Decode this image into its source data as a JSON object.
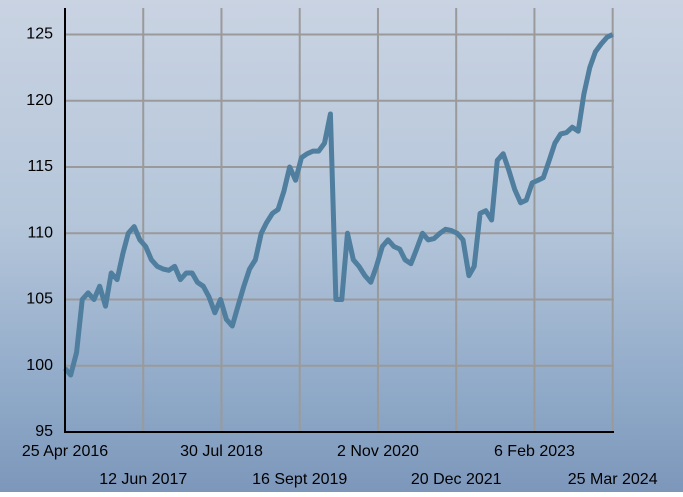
{
  "chart_data": {
    "type": "line",
    "color": "#4f7e9e",
    "grid": true,
    "x": [
      "2016-04-25",
      "2016-05-25",
      "2016-06-25",
      "2016-07-25",
      "2016-08-25",
      "2016-09-25",
      "2016-10-25",
      "2016-11-25",
      "2016-12-25",
      "2017-01-25",
      "2017-02-25",
      "2017-03-25",
      "2017-04-25",
      "2017-05-25",
      "2017-06-25",
      "2017-07-25",
      "2017-08-25",
      "2017-09-25",
      "2017-10-25",
      "2017-11-25",
      "2017-12-25",
      "2018-01-25",
      "2018-02-25",
      "2018-03-25",
      "2018-04-25",
      "2018-05-25",
      "2018-06-25",
      "2018-07-25",
      "2018-08-25",
      "2018-09-25",
      "2018-10-25",
      "2018-11-25",
      "2018-12-25",
      "2019-01-25",
      "2019-02-25",
      "2019-03-25",
      "2019-04-25",
      "2019-05-25",
      "2019-06-25",
      "2019-07-25",
      "2019-08-25",
      "2019-09-25",
      "2019-10-25",
      "2019-11-25",
      "2019-12-25",
      "2020-01-25",
      "2020-02-25",
      "2020-03-25",
      "2020-04-25",
      "2020-05-25",
      "2020-06-25",
      "2020-07-25",
      "2020-08-25",
      "2020-09-25",
      "2020-10-25",
      "2020-11-25",
      "2020-12-25",
      "2021-01-25",
      "2021-02-25",
      "2021-03-25",
      "2021-04-25",
      "2021-05-25",
      "2021-06-25",
      "2021-07-25",
      "2021-08-25",
      "2021-09-25",
      "2021-10-25",
      "2021-11-25",
      "2021-12-25",
      "2022-01-25",
      "2022-02-25",
      "2022-03-25",
      "2022-04-25",
      "2022-05-25",
      "2022-06-25",
      "2022-07-25",
      "2022-08-25",
      "2022-09-25",
      "2022-10-25",
      "2022-11-25",
      "2022-12-25",
      "2023-01-25",
      "2023-02-25",
      "2023-03-25",
      "2023-04-25",
      "2023-05-25",
      "2023-06-25",
      "2023-07-25",
      "2023-08-25",
      "2023-09-25",
      "2023-10-25",
      "2023-11-25",
      "2023-12-25",
      "2024-01-25",
      "2024-02-25",
      "2024-03-25"
    ],
    "values": [
      99.8,
      99.3,
      101,
      105,
      105.5,
      105,
      106,
      104.5,
      107,
      106.5,
      108.5,
      110,
      110.5,
      109.5,
      109,
      108,
      107.5,
      107.3,
      107.2,
      107.5,
      106.5,
      107,
      107,
      106.3,
      106,
      105.2,
      104,
      105,
      103.5,
      103,
      104.5,
      106,
      107.3,
      108,
      110,
      110.8,
      111.5,
      111.8,
      113.2,
      115,
      114,
      115.7,
      116,
      116.2,
      116.2,
      116.8,
      119,
      105,
      105,
      110,
      108,
      107.5,
      106.8,
      106.3,
      107.5,
      109,
      109.5,
      109,
      108.8,
      108,
      107.7,
      108.8,
      110,
      109.5,
      109.6,
      110,
      110.3,
      110.2,
      110,
      109.5,
      106.8,
      107.5,
      111.5,
      111.7,
      111,
      115.5,
      116,
      114.7,
      113.3,
      112.3,
      112.5,
      113.8,
      114,
      114.2,
      115.5,
      116.8,
      117.5,
      117.6,
      118,
      117.7,
      120.5,
      122.5,
      123.7,
      124.3,
      124.8,
      125
    ],
    "xlim": [
      "2016-04-25",
      "2024-04-01"
    ],
    "xticks": [
      {
        "value": "2016-04-25",
        "label": "25 Apr 2016"
      },
      {
        "value": "2017-06-12",
        "label": "12 Jun 2017"
      },
      {
        "value": "2018-07-30",
        "label": "30 Jul 2018"
      },
      {
        "value": "2019-09-16",
        "label": "16 Sept 2019"
      },
      {
        "value": "2020-11-02",
        "label": "2 Nov 2020"
      },
      {
        "value": "2021-12-20",
        "label": "20 Dec 2021"
      },
      {
        "value": "2023-02-06",
        "label": "6 Feb 2023"
      },
      {
        "value": "2024-03-25",
        "label": "25 Mar 2024"
      }
    ],
    "ylim": [
      95,
      127
    ],
    "yticks": [
      95,
      100,
      105,
      110,
      115,
      120,
      125
    ]
  }
}
